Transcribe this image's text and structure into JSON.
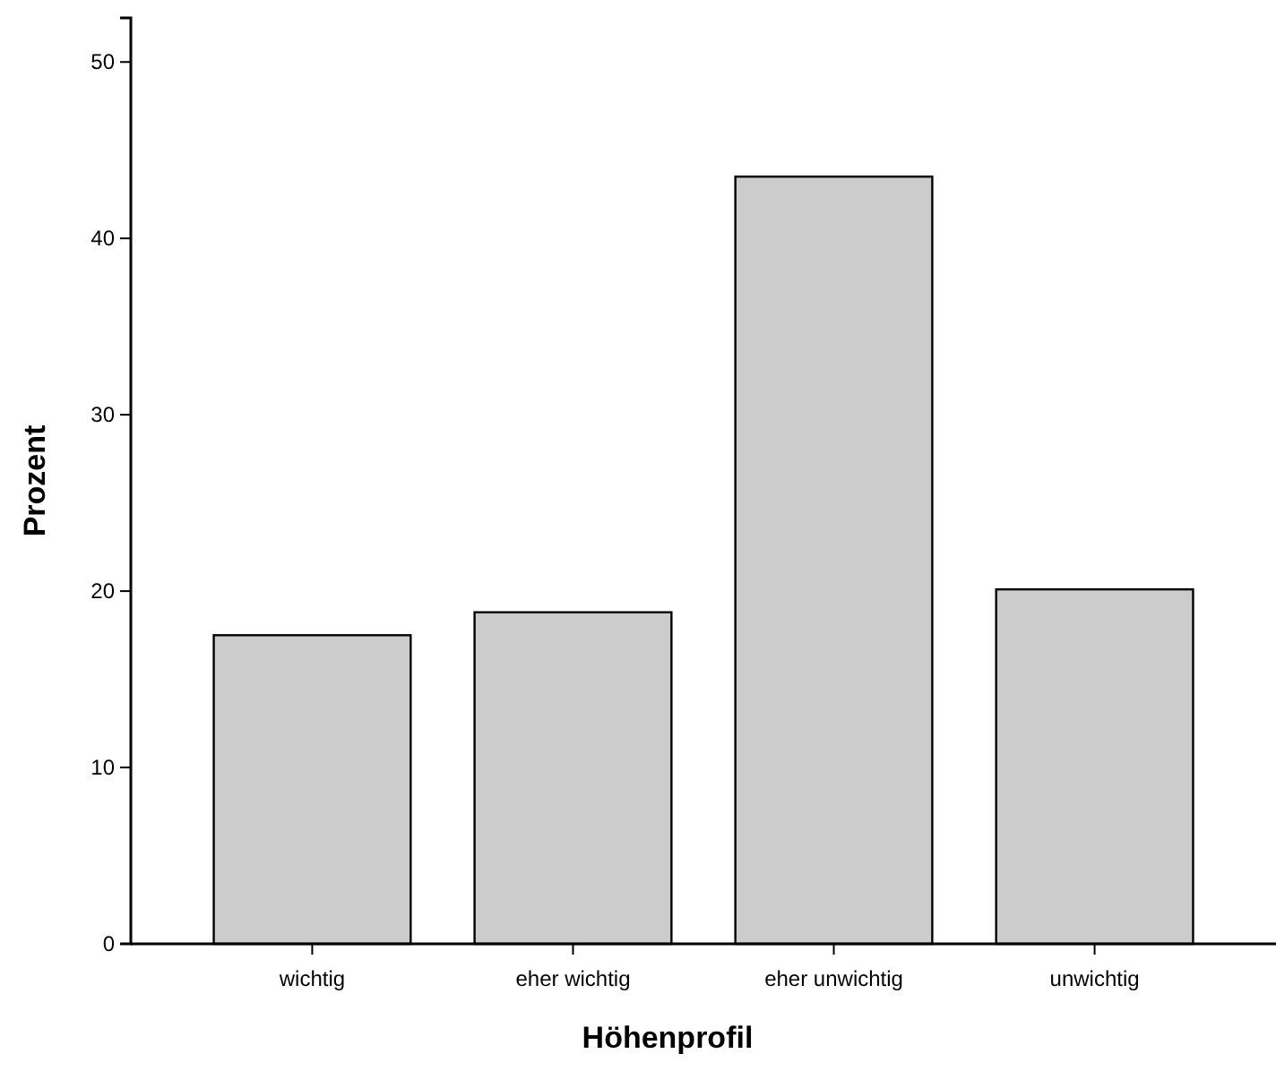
{
  "chart_data": {
    "type": "bar",
    "xlabel": "Höhenprofil",
    "ylabel": "Prozent",
    "categories": [
      "wichtig",
      "eher wichtig",
      "eher unwichtig",
      "unwichtig"
    ],
    "values": [
      17.5,
      18.8,
      43.5,
      20.1
    ],
    "color": "#cccccc",
    "ylim": [
      0,
      52.5
    ],
    "yticks": [
      0,
      10,
      20,
      30,
      40,
      50
    ],
    "grid": false
  }
}
